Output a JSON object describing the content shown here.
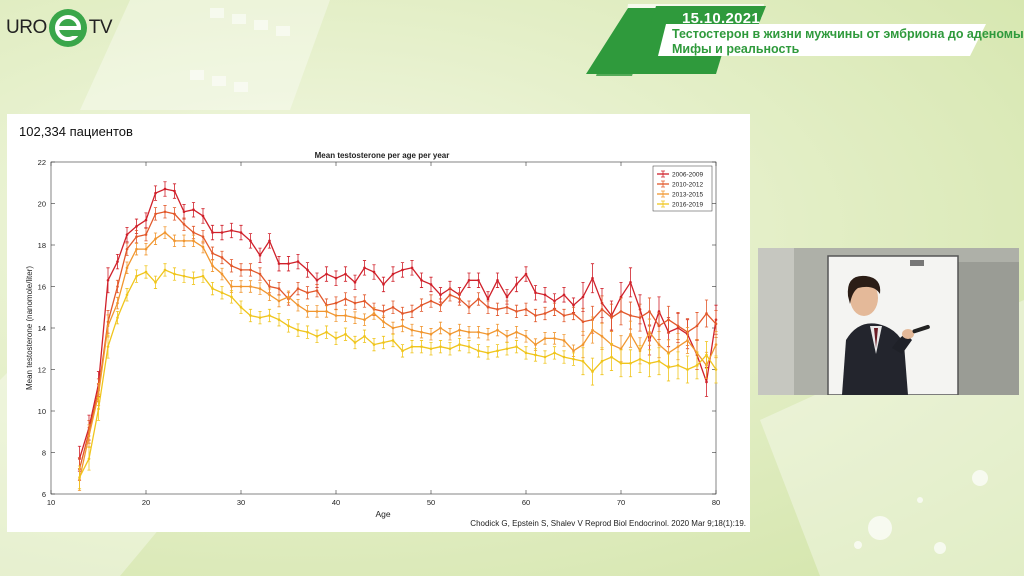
{
  "logo": {
    "left": "URO",
    "right": "TV"
  },
  "banner": {
    "date": "15.10.2021",
    "title_line1": "Тестостерон в жизни мужчины от эмбриона до аденомы.",
    "title_line2": "Мифы и реальность"
  },
  "slide": {
    "heading": "102,334 пациентов",
    "citation": "Chodick G, Epstein S, Shalev V Reprod Biol Endocrinol. 2020 Mar 9;18(1):19."
  },
  "chart_data": {
    "type": "line",
    "title": "Mean testosterone per age per year",
    "xlabel": "Age",
    "ylabel": "Mean testosterone (nanomole/liter)",
    "xlim": [
      10,
      80
    ],
    "ylim": [
      6,
      22
    ],
    "xticks": [
      10,
      20,
      30,
      40,
      50,
      60,
      70,
      80
    ],
    "yticks": [
      6,
      8,
      10,
      12,
      14,
      16,
      18,
      20,
      22
    ],
    "grid": false,
    "legend_position": "top-right",
    "error_bars": true,
    "x": [
      13,
      14,
      15,
      16,
      17,
      18,
      19,
      20,
      21,
      22,
      23,
      24,
      25,
      26,
      27,
      28,
      29,
      30,
      31,
      32,
      33,
      34,
      35,
      36,
      37,
      38,
      39,
      40,
      41,
      42,
      43,
      44,
      45,
      46,
      47,
      48,
      49,
      50,
      51,
      52,
      53,
      54,
      55,
      56,
      57,
      58,
      59,
      60,
      61,
      62,
      63,
      64,
      65,
      66,
      67,
      68,
      69,
      70,
      71,
      72,
      73,
      74,
      75,
      76,
      77,
      78,
      79,
      80
    ],
    "series": [
      {
        "name": "2006-2009",
        "color": "#d0202a",
        "values": [
          7.7,
          9.2,
          11.3,
          16.3,
          17.2,
          18.5,
          18.9,
          19.2,
          20.5,
          20.7,
          20.6,
          19.6,
          19.7,
          19.4,
          18.6,
          18.6,
          18.7,
          18.6,
          18.2,
          17.5,
          18.2,
          17.1,
          17.1,
          17.2,
          16.8,
          16.3,
          16.6,
          16.4,
          16.6,
          16.2,
          16.9,
          16.7,
          16.1,
          16.6,
          16.8,
          16.9,
          16.3,
          16.1,
          15.6,
          15.9,
          15.6,
          16.3,
          16.3,
          15.4,
          16.3,
          15.5,
          16.1,
          16.6,
          15.7,
          15.6,
          15.3,
          15.6,
          15.1,
          15.5,
          16.4,
          15.2,
          14.6,
          15.5,
          16.2,
          14.9,
          13.4,
          14.8,
          13.8,
          14.0,
          13.7,
          12.7,
          11.4,
          14.4
        ]
      },
      {
        "name": "2010-2012",
        "color": "#e2572a",
        "values": [
          7.2,
          9.0,
          11.0,
          14.3,
          16.0,
          17.8,
          18.4,
          18.5,
          19.5,
          19.6,
          19.5,
          19.0,
          18.6,
          18.4,
          17.6,
          17.4,
          17.0,
          16.8,
          16.8,
          16.6,
          16.0,
          15.9,
          15.4,
          15.9,
          15.7,
          15.8,
          15.1,
          15.2,
          15.4,
          15.2,
          15.3,
          14.9,
          14.8,
          15.0,
          14.7,
          14.8,
          15.1,
          15.3,
          15.1,
          15.6,
          15.4,
          15.0,
          15.4,
          15.0,
          14.9,
          15.0,
          14.8,
          14.9,
          14.6,
          14.7,
          14.9,
          14.6,
          14.7,
          14.3,
          14.4,
          14.9,
          14.5,
          14.8,
          14.6,
          14.5,
          14.8,
          14.1,
          14.4,
          14.1,
          13.8,
          14.1,
          14.7,
          14.2
        ]
      },
      {
        "name": "2013-2015",
        "color": "#f1962f",
        "values": [
          6.7,
          8.8,
          10.8,
          14.1,
          15.2,
          16.9,
          17.8,
          17.8,
          18.3,
          18.6,
          18.2,
          18.2,
          18.2,
          17.9,
          17.0,
          16.6,
          16.0,
          16.0,
          16.0,
          15.9,
          15.6,
          15.3,
          15.5,
          15.1,
          14.8,
          14.8,
          14.8,
          14.6,
          14.6,
          14.5,
          14.4,
          14.7,
          14.3,
          14.0,
          14.1,
          13.9,
          13.8,
          13.7,
          14.0,
          13.7,
          13.9,
          13.8,
          13.8,
          13.7,
          13.9,
          13.6,
          13.8,
          13.6,
          13.2,
          13.5,
          13.5,
          13.4,
          12.9,
          13.2,
          13.9,
          13.6,
          13.2,
          13.0,
          13.7,
          12.9,
          13.8,
          13.2,
          12.8,
          13.1,
          13.4,
          12.8,
          12.2,
          13.2
        ]
      },
      {
        "name": "2016-2019",
        "color": "#f0c51c",
        "values": [
          6.8,
          7.7,
          10.1,
          13.1,
          14.5,
          15.6,
          16.5,
          16.7,
          16.2,
          16.8,
          16.6,
          16.5,
          16.4,
          16.5,
          15.9,
          15.7,
          15.5,
          15.0,
          14.6,
          14.5,
          14.6,
          14.4,
          14.1,
          13.9,
          13.8,
          13.6,
          13.8,
          13.5,
          13.7,
          13.3,
          13.6,
          13.2,
          13.3,
          13.4,
          12.9,
          13.1,
          13.1,
          13.0,
          13.1,
          13.0,
          13.2,
          13.1,
          12.9,
          12.8,
          12.9,
          13.0,
          13.1,
          12.8,
          12.7,
          12.6,
          12.8,
          12.6,
          12.5,
          12.4,
          11.9,
          12.4,
          12.6,
          12.3,
          12.3,
          12.5,
          12.3,
          12.4,
          12.1,
          12.2,
          12.0,
          12.2,
          12.7,
          12.0
        ]
      }
    ]
  }
}
